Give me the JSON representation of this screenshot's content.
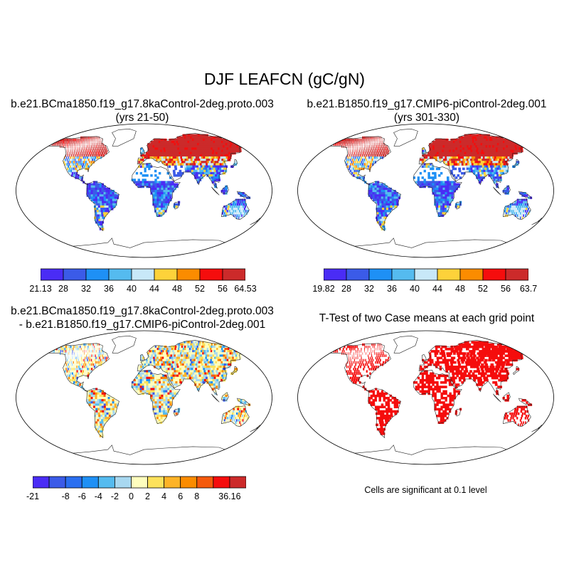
{
  "title": "DJF LEAFCN (gC/gN)",
  "panels": [
    {
      "line1": "b.e21.BCma1850.f19_g17.8kaControl-2deg.proto.003",
      "line2": "(yrs 21-50)",
      "colorbar": {
        "labels": [
          "21.13",
          "28",
          "32",
          "36",
          "40",
          "44",
          "48",
          "52",
          "56",
          "64.53"
        ],
        "colors": [
          "#4a2cf5",
          "#3b5be8",
          "#1e90f5",
          "#55bbef",
          "#c8e8f8",
          "#fdd23a",
          "#fb8c00",
          "#f50d0d",
          "#cc2a2a"
        ]
      }
    },
    {
      "line1": "b.e21.B1850.f19_g17.CMIP6-piControl-2deg.001",
      "line2": "(yrs 301-330)",
      "colorbar": {
        "labels": [
          "19.82",
          "28",
          "32",
          "36",
          "40",
          "44",
          "48",
          "52",
          "56",
          "63.7"
        ],
        "colors": [
          "#4a2cf5",
          "#3b5be8",
          "#1e90f5",
          "#55bbef",
          "#c8e8f8",
          "#fdd23a",
          "#fb8c00",
          "#f50d0d",
          "#cc2a2a"
        ]
      }
    },
    {
      "line1": "b.e21.BCma1850.f19_g17.8kaControl-2deg.proto.003",
      "line2": "- b.e21.B1850.f19_g17.CMIP6-piControl-2deg.001",
      "colorbar": {
        "labels": [
          "-21",
          "",
          "-8",
          "-6",
          "-4",
          "-2",
          "0",
          "2",
          "4",
          "6",
          "8",
          "",
          "36.16"
        ],
        "colors": [
          "#4a2cf5",
          "#3b5be8",
          "#2a6ff0",
          "#1e90f5",
          "#55bbef",
          "#a8d8f0",
          "#fefebe",
          "#fde25c",
          "#fdb327",
          "#fb8c00",
          "#f55a0c",
          "#f50d0d",
          "#cc2a2a"
        ]
      }
    },
    {
      "line1": "T-Test of two Case means at each grid point",
      "note": "Cells are significant at 0.1 level",
      "color": "#f50d0d"
    }
  ]
}
